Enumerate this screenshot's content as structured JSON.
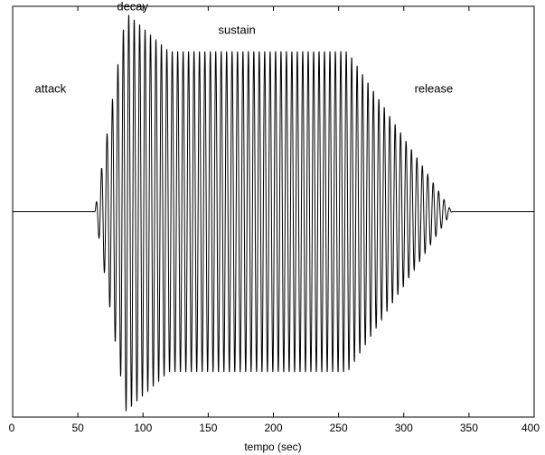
{
  "chart_data": {
    "type": "line",
    "title": "",
    "xlabel": "tempo (sec)",
    "ylabel": "",
    "xlim": [
      0,
      400
    ],
    "ylim": [
      -1.05,
      1.05
    ],
    "x_ticks": [
      0,
      50,
      100,
      150,
      200,
      250,
      300,
      350,
      400
    ],
    "x_tick_labels": [
      "0",
      "50",
      "100",
      "150",
      "200",
      "250",
      "300",
      "350",
      "400"
    ],
    "y_ticks_visible": false,
    "grid": false,
    "legend": "none",
    "annotations": [
      {
        "text": "attack",
        "x": 29,
        "y": 0.61
      },
      {
        "text": "decay",
        "x": 92,
        "y": 1.03
      },
      {
        "text": "sustain",
        "x": 172,
        "y": 0.91
      },
      {
        "text": "release",
        "x": 323,
        "y": 0.61
      }
    ],
    "envelope": {
      "points": [
        {
          "t": 0,
          "a": 0
        },
        {
          "t": 63,
          "a": 0
        },
        {
          "t": 87,
          "a": 1.02
        },
        {
          "t": 120,
          "a": 0.82
        },
        {
          "t": 257,
          "a": 0.82
        },
        {
          "t": 337,
          "a": 0
        },
        {
          "t": 400,
          "a": 0
        }
      ],
      "carrier_period": 4.17
    },
    "series": [
      {
        "color": "#000000"
      }
    ]
  }
}
